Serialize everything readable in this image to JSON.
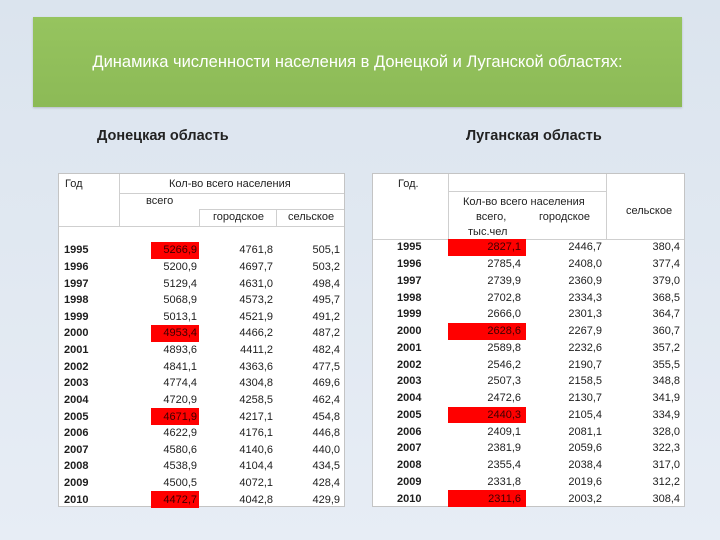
{
  "slide": {
    "title": "Динамика численности населения в Донецкой и Луганской областях:"
  },
  "colors": {
    "title_bar": "#8cba56",
    "highlight": "#ff0000"
  },
  "donetsk": {
    "heading": "Донецкая область",
    "header": {
      "year": "Год",
      "population_group": "Кол-во всего населения",
      "total": "всего",
      "urban": "городское",
      "rural": "сельское"
    },
    "rows": [
      {
        "year": "1995",
        "total": "5266,9",
        "urban": "4761,8",
        "rural": "505,1",
        "highlight": true
      },
      {
        "year": "1996",
        "total": "5200,9",
        "urban": "4697,7",
        "rural": "503,2",
        "highlight": false
      },
      {
        "year": "1997",
        "total": "5129,4",
        "urban": "4631,0",
        "rural": "498,4",
        "highlight": false
      },
      {
        "year": "1998",
        "total": "5068,9",
        "urban": "4573,2",
        "rural": "495,7",
        "highlight": false
      },
      {
        "year": "1999",
        "total": "5013,1",
        "urban": "4521,9",
        "rural": "491,2",
        "highlight": false
      },
      {
        "year": "2000",
        "total": "4953,4",
        "urban": "4466,2",
        "rural": "487,2",
        "highlight": true
      },
      {
        "year": "2001",
        "total": "4893,6",
        "urban": "4411,2",
        "rural": "482,4",
        "highlight": false
      },
      {
        "year": "2002",
        "total": "4841,1",
        "urban": "4363,6",
        "rural": "477,5",
        "highlight": false
      },
      {
        "year": "2003",
        "total": "4774,4",
        "urban": "4304,8",
        "rural": "469,6",
        "highlight": false
      },
      {
        "year": "2004",
        "total": "4720,9",
        "urban": "4258,5",
        "rural": "462,4",
        "highlight": false
      },
      {
        "year": "2005",
        "total": "4671,9",
        "urban": "4217,1",
        "rural": "454,8",
        "highlight": true
      },
      {
        "year": "2006",
        "total": "4622,9",
        "urban": "4176,1",
        "rural": "446,8",
        "highlight": false
      },
      {
        "year": "2007",
        "total": "4580,6",
        "urban": "4140,6",
        "rural": "440,0",
        "highlight": false
      },
      {
        "year": "2008",
        "total": "4538,9",
        "urban": "4104,4",
        "rural": "434,5",
        "highlight": false
      },
      {
        "year": "2009",
        "total": "4500,5",
        "urban": "4072,1",
        "rural": "428,4",
        "highlight": false
      },
      {
        "year": "2010",
        "total": "4472,7",
        "urban": "4042,8",
        "rural": "429,9",
        "highlight": true
      }
    ]
  },
  "luhansk": {
    "heading": "Луганская область",
    "header": {
      "year": "Год.",
      "population_group": "Кол-во всего населения",
      "total": "всего,",
      "unit": "тыс.чел",
      "urban": "городское",
      "rural": "сельское"
    },
    "rows": [
      {
        "year": "1995",
        "total": "2827,1",
        "urban": "2446,7",
        "rural": "380,4",
        "highlight": true
      },
      {
        "year": "1996",
        "total": "2785,4",
        "urban": "2408,0",
        "rural": "377,4",
        "highlight": false
      },
      {
        "year": "1997",
        "total": "2739,9",
        "urban": "2360,9",
        "rural": "379,0",
        "highlight": false
      },
      {
        "year": "1998",
        "total": "2702,8",
        "urban": "2334,3",
        "rural": "368,5",
        "highlight": false
      },
      {
        "year": "1999",
        "total": "2666,0",
        "urban": "2301,3",
        "rural": "364,7",
        "highlight": false
      },
      {
        "year": "2000",
        "total": "2628,6",
        "urban": "2267,9",
        "rural": "360,7",
        "highlight": true
      },
      {
        "year": "2001",
        "total": "2589,8",
        "urban": "2232,6",
        "rural": "357,2",
        "highlight": false
      },
      {
        "year": "2002",
        "total": "2546,2",
        "urban": "2190,7",
        "rural": "355,5",
        "highlight": false
      },
      {
        "year": "2003",
        "total": "2507,3",
        "urban": "2158,5",
        "rural": "348,8",
        "highlight": false
      },
      {
        "year": "2004",
        "total": "2472,6",
        "urban": "2130,7",
        "rural": "341,9",
        "highlight": false
      },
      {
        "year": "2005",
        "total": "2440,3",
        "urban": "2105,4",
        "rural": "334,9",
        "highlight": true
      },
      {
        "year": "2006",
        "total": "2409,1",
        "urban": "2081,1",
        "rural": "328,0",
        "highlight": false
      },
      {
        "year": "2007",
        "total": "2381,9",
        "urban": "2059,6",
        "rural": "322,3",
        "highlight": false
      },
      {
        "year": "2008",
        "total": "2355,4",
        "urban": "2038,4",
        "rural": "317,0",
        "highlight": false
      },
      {
        "year": "2009",
        "total": "2331,8",
        "urban": "2019,6",
        "rural": "312,2",
        "highlight": false
      },
      {
        "year": "2010",
        "total": "2311,6",
        "urban": "2003,2",
        "rural": "308,4",
        "highlight": true
      }
    ]
  }
}
